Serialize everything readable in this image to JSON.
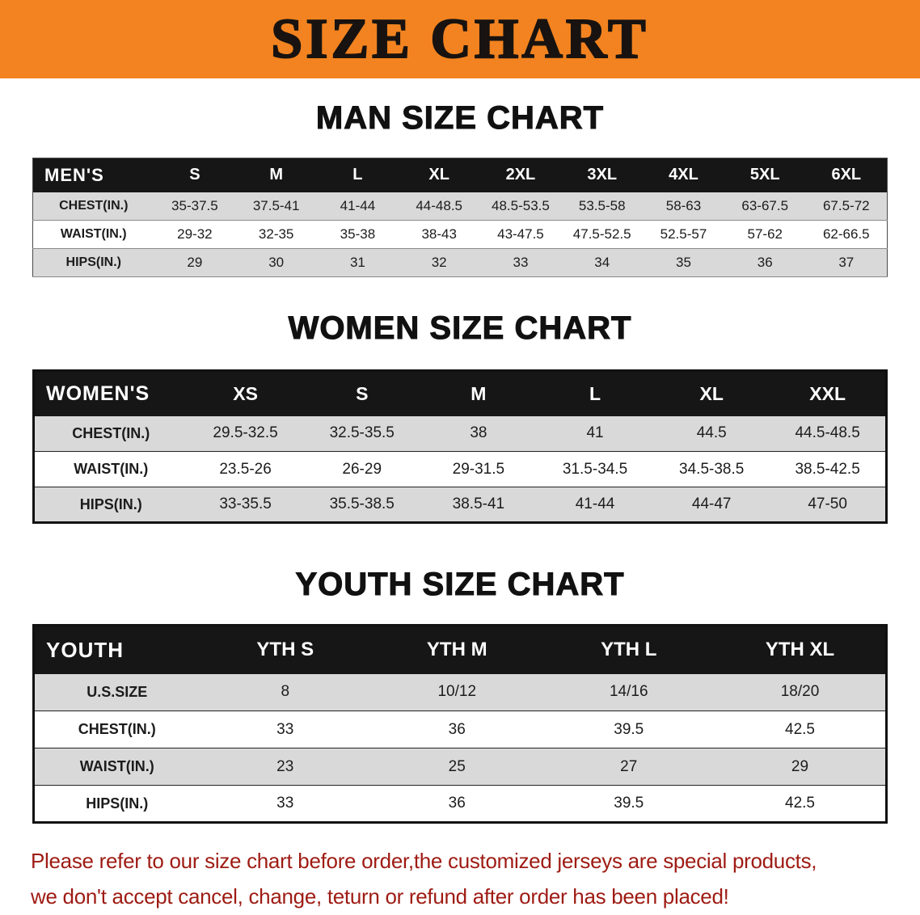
{
  "banner": {
    "title": "SIZE CHART"
  },
  "colors": {
    "banner_orange": "#f28320",
    "table_header_black": "#161616",
    "row_gray": "#d9d9d9",
    "notice_red": "#9e1b13"
  },
  "sections": {
    "men": {
      "heading": "MAN SIZE CHART",
      "table": {
        "corner": "MEN'S",
        "columns": [
          "S",
          "M",
          "L",
          "XL",
          "2XL",
          "3XL",
          "4XL",
          "5XL",
          "6XL"
        ],
        "rows": [
          {
            "label": "CHEST(IN.)",
            "values": [
              "35-37.5",
              "37.5-41",
              "41-44",
              "44-48.5",
              "48.5-53.5",
              "53.5-58",
              "58-63",
              "63-67.5",
              "67.5-72"
            ]
          },
          {
            "label": "WAIST(IN.)",
            "values": [
              "29-32",
              "32-35",
              "35-38",
              "38-43",
              "43-47.5",
              "47.5-52.5",
              "52.5-57",
              "57-62",
              "62-66.5"
            ]
          },
          {
            "label": "HIPS(IN.)",
            "values": [
              "29",
              "30",
              "31",
              "32",
              "33",
              "34",
              "35",
              "36",
              "37"
            ]
          }
        ]
      }
    },
    "women": {
      "heading": "WOMEN SIZE CHART",
      "table": {
        "corner": "WOMEN'S",
        "columns": [
          "XS",
          "S",
          "M",
          "L",
          "XL",
          "XXL"
        ],
        "rows": [
          {
            "label": "CHEST(IN.)",
            "values": [
              "29.5-32.5",
              "32.5-35.5",
              "38",
              "41",
              "44.5",
              "44.5-48.5"
            ]
          },
          {
            "label": "WAIST(IN.)",
            "values": [
              "23.5-26",
              "26-29",
              "29-31.5",
              "31.5-34.5",
              "34.5-38.5",
              "38.5-42.5"
            ]
          },
          {
            "label": "HIPS(IN.)",
            "values": [
              "33-35.5",
              "35.5-38.5",
              "38.5-41",
              "41-44",
              "44-47",
              "47-50"
            ]
          }
        ]
      }
    },
    "youth": {
      "heading": "YOUTH SIZE CHART",
      "table": {
        "corner": "YOUTH",
        "columns": [
          "YTH S",
          "YTH M",
          "YTH L",
          "YTH XL"
        ],
        "rows": [
          {
            "label": "U.S.SIZE",
            "values": [
              "8",
              "10/12",
              "14/16",
              "18/20"
            ]
          },
          {
            "label": "CHEST(IN.)",
            "values": [
              "33",
              "36",
              "39.5",
              "42.5"
            ]
          },
          {
            "label": "WAIST(IN.)",
            "values": [
              "23",
              "25",
              "27",
              "29"
            ]
          },
          {
            "label": "HIPS(IN.)",
            "values": [
              "33",
              "36",
              "39.5",
              "42.5"
            ]
          }
        ]
      }
    }
  },
  "footer": {
    "line1": "Please refer to our size chart before order,the customized jerseys are special products,",
    "line2": "we don't accept cancel, change, teturn or refund after order has been placed!"
  }
}
